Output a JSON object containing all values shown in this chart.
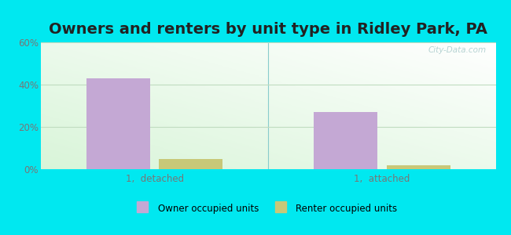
{
  "title": "Owners and renters by unit type in Ridley Park, PA",
  "categories": [
    "1,  detached",
    "1,  attached"
  ],
  "owner_values": [
    43,
    27
  ],
  "renter_values": [
    5,
    2
  ],
  "owner_color": "#c4a8d4",
  "renter_color": "#c8c878",
  "ylim": [
    0,
    60
  ],
  "yticks": [
    0,
    20,
    40,
    60
  ],
  "ytick_labels": [
    "0%",
    "20%",
    "40%",
    "60%"
  ],
  "bar_width": 0.28,
  "background_outer": "#00e8f0",
  "legend_owner": "Owner occupied units",
  "legend_renter": "Renter occupied units",
  "title_fontsize": 14,
  "watermark": "City-Data.com"
}
